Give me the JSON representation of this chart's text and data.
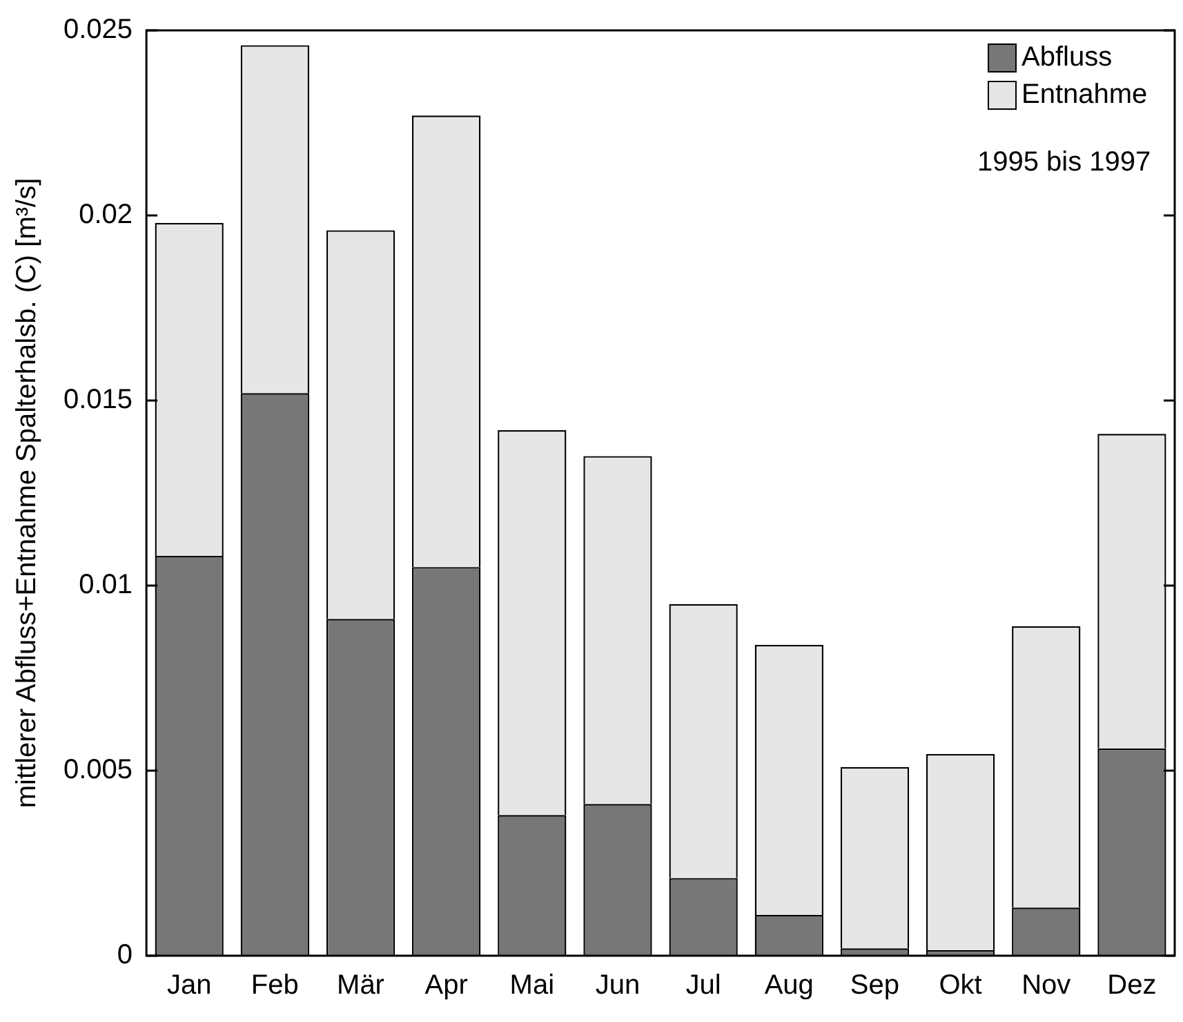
{
  "chart_data": {
    "type": "bar",
    "stacked": true,
    "ylabel": "mittlerer Abfluss+Entnahme Spalterhalsb. (C) [m³/s]",
    "categories": [
      "Jan",
      "Feb",
      "Mär",
      "Apr",
      "Mai",
      "Jun",
      "Jul",
      "Aug",
      "Sep",
      "Okt",
      "Nov",
      "Dez"
    ],
    "series": [
      {
        "name": "Abfluss",
        "color": "#777777",
        "values": [
          0.0108,
          0.0152,
          0.0091,
          0.0105,
          0.0038,
          0.0041,
          0.0021,
          0.0011,
          0.0002,
          0.00015,
          0.0013,
          0.0056
        ]
      },
      {
        "name": "Entnahme",
        "color": "#e6e6e6",
        "values": [
          0.009,
          0.0094,
          0.0105,
          0.0122,
          0.0104,
          0.0094,
          0.0074,
          0.0073,
          0.0049,
          0.0053,
          0.0076,
          0.0085
        ]
      }
    ],
    "ylim": [
      0,
      0.025
    ],
    "yticks": [
      0,
      0.005,
      0.01,
      0.015,
      0.02,
      0.025
    ],
    "grid": false,
    "legend": "top right",
    "annotations": [
      "1995 bis 1997"
    ]
  }
}
